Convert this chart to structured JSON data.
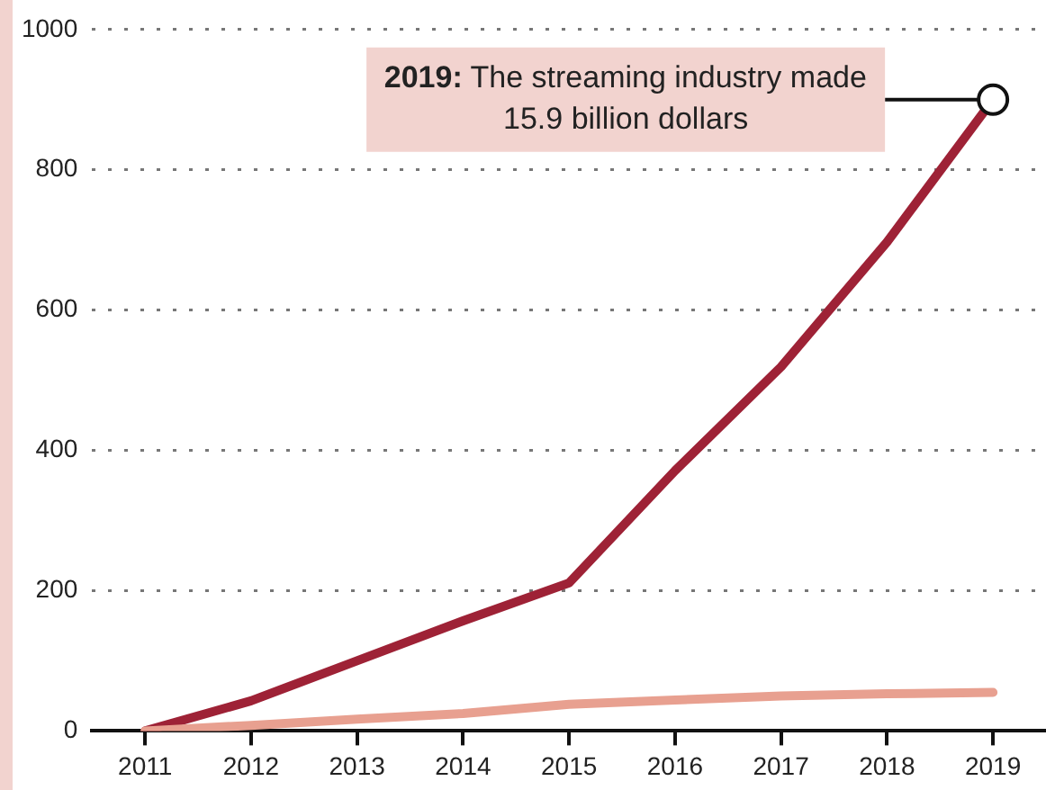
{
  "chart_data": {
    "type": "line",
    "categories": [
      "2011",
      "2012",
      "2013",
      "2014",
      "2015",
      "2016",
      "2017",
      "2018",
      "2019"
    ],
    "series": [
      {
        "color": "#e8a090",
        "values": [
          0,
          8,
          17,
          25,
          38,
          44,
          50,
          53,
          55
        ]
      },
      {
        "color": "#9e2236",
        "values": [
          0,
          43,
          100,
          157,
          211,
          371,
          519,
          697,
          900
        ]
      }
    ],
    "ylim": [
      0,
      1000
    ],
    "yticks": [
      0,
      200,
      400,
      600,
      800,
      1000
    ],
    "grid": "y",
    "legend": false,
    "marker": "none",
    "line_style": "solid",
    "annotations": [
      {
        "text": "2019: The streaming industry made 15.9 billion dollars",
        "x": "2019",
        "y": 900
      }
    ]
  }
}
